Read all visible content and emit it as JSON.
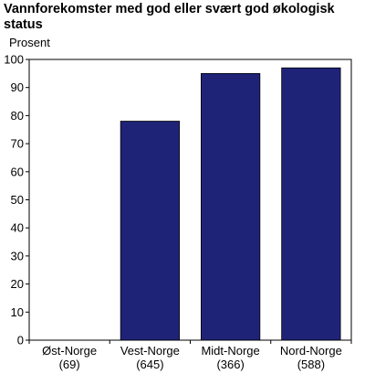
{
  "chart_data": {
    "type": "bar",
    "title": "Vannforekomster med god eller svært god økologisk status",
    "ylabel": "Prosent",
    "xlabel": "",
    "categories": [
      {
        "name": "Øst-Norge",
        "count": "(69)"
      },
      {
        "name": "Vest-Norge",
        "count": "(645)"
      },
      {
        "name": "Midt-Norge",
        "count": "(366)"
      },
      {
        "name": "Nord-Norge",
        "count": "(588)"
      }
    ],
    "values": [
      0,
      78,
      95,
      97
    ],
    "ylim": [
      0,
      100
    ],
    "yticks": [
      0,
      10,
      20,
      30,
      40,
      50,
      60,
      70,
      80,
      90,
      100
    ],
    "grid": false,
    "bar_color": "#1f2378"
  }
}
